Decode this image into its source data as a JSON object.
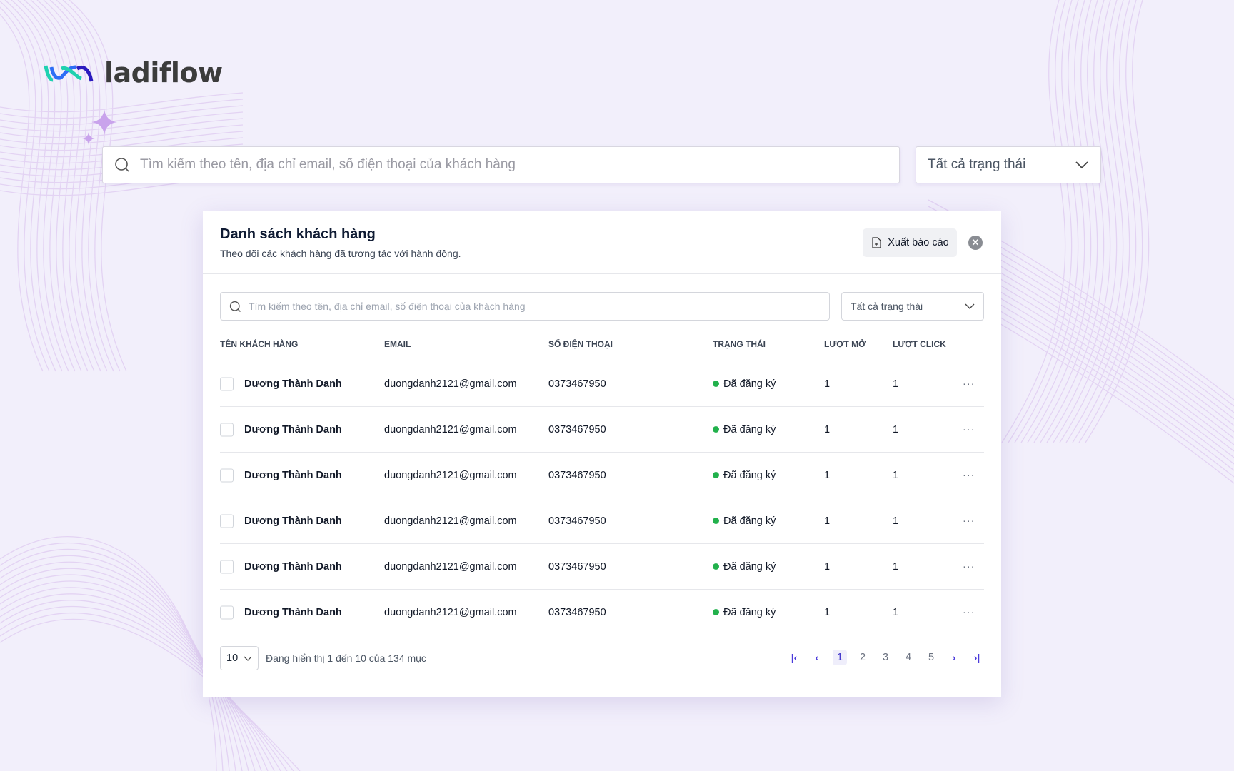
{
  "brand": {
    "name": "ladiflow",
    "colors": {
      "teal": "#1fd1b0",
      "blue": "#2d6df6",
      "indigo": "#2b1bbf"
    }
  },
  "top": {
    "search_placeholder": "Tìm kiếm theo tên, địa chỉ email, số điện thoại của khách hàng",
    "status_select": "Tất cả trạng thái"
  },
  "card": {
    "title": "Danh sách khách hàng",
    "subtitle": "Theo dõi các khách hàng đã tương tác với hành động.",
    "export_label": "Xuất báo cáo",
    "search_placeholder": "Tìm kiếm theo tên, địa chỉ email, số điện thoại của khách hàng",
    "status_select": "Tất cả trạng thái",
    "columns": [
      "TÊN KHÁCH HÀNG",
      "EMAIL",
      "SỐ ĐIỆN THOẠI",
      "TRẠNG THÁI",
      "LƯỢT MỞ",
      "LƯỢT CLICK"
    ],
    "rows": [
      {
        "name": "Dương Thành Danh",
        "email": "duongdanh2121@gmail.com",
        "phone": "0373467950",
        "status": "Đã đăng ký",
        "opens": "1",
        "clicks": "1"
      },
      {
        "name": "Dương Thành Danh",
        "email": "duongdanh2121@gmail.com",
        "phone": "0373467950",
        "status": "Đã đăng ký",
        "opens": "1",
        "clicks": "1"
      },
      {
        "name": "Dương Thành Danh",
        "email": "duongdanh2121@gmail.com",
        "phone": "0373467950",
        "status": "Đã đăng ký",
        "opens": "1",
        "clicks": "1"
      },
      {
        "name": "Dương Thành Danh",
        "email": "duongdanh2121@gmail.com",
        "phone": "0373467950",
        "status": "Đã đăng ký",
        "opens": "1",
        "clicks": "1"
      },
      {
        "name": "Dương Thành Danh",
        "email": "duongdanh2121@gmail.com",
        "phone": "0373467950",
        "status": "Đã đăng ký",
        "opens": "1",
        "clicks": "1"
      },
      {
        "name": "Dương Thành Danh",
        "email": "duongdanh2121@gmail.com",
        "phone": "0373467950",
        "status": "Đã đăng ký",
        "opens": "1",
        "clicks": "1"
      }
    ],
    "status_color": "#22b14c",
    "footer": {
      "page_size": "10",
      "info": "Đang hiển thị 1 đến 10 của 134 mục",
      "pages": [
        "1",
        "2",
        "3",
        "4",
        "5"
      ],
      "current_page": "1"
    }
  }
}
